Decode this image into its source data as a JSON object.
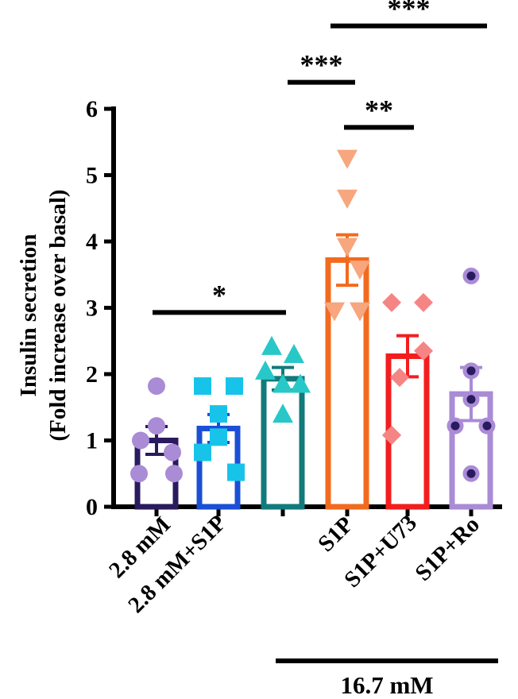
{
  "chart_data": {
    "type": "bar",
    "title": "",
    "xlabel": "",
    "ylabel": [
      "Insulin secretion",
      "(Fold increase over basal)"
    ],
    "ylim": [
      0,
      6
    ],
    "yticks": [
      "0",
      "1",
      "2",
      "3",
      "4",
      "5",
      "6"
    ],
    "categories": [
      "2.8 mM",
      "2.8 mM+S1P",
      "",
      "S1P",
      "S1P+U73",
      "S1P+Ro"
    ],
    "group_label": "16.7 mM",
    "bars": [
      {
        "category": "2.8 mM",
        "mean": 1.0,
        "sem": 0.21,
        "color": "#2a1a5e",
        "marker": "circle",
        "marker_color": "#a98bd6",
        "points": [
          1.82,
          1.22,
          1.0,
          0.82,
          0.5,
          0.5
        ]
      },
      {
        "category": "2.8 mM+S1P",
        "mean": 1.18,
        "sem": 0.21,
        "color": "#1a4fd6",
        "marker": "square",
        "marker_color": "#18c3ea",
        "points": [
          1.82,
          1.82,
          1.4,
          1.05,
          0.82,
          0.52
        ]
      },
      {
        "category": "",
        "mean": 1.93,
        "sem": 0.17,
        "color": "#127a7a",
        "marker": "triangle-up",
        "marker_color": "#28c8c8",
        "points": [
          2.42,
          2.3,
          2.05,
          1.85,
          1.85,
          1.4
        ]
      },
      {
        "category": "S1P",
        "mean": 3.72,
        "sem": 0.38,
        "color": "#f26a1e",
        "marker": "triangle-down",
        "marker_color": "#f7a67e",
        "points": [
          5.25,
          4.65,
          3.92,
          3.58,
          2.95,
          2.95
        ]
      },
      {
        "category": "S1P+U73",
        "mean": 2.27,
        "sem": 0.31,
        "color": "#f21e1e",
        "marker": "diamond",
        "marker_color": "#f58585",
        "points": [
          3.08,
          3.08,
          2.35,
          1.95,
          1.08,
          1.08
        ]
      },
      {
        "category": "S1P+Ro",
        "mean": 1.7,
        "sem": 0.4,
        "color": "#a98bd6",
        "marker": "circle",
        "marker_color": "#2a1a5e",
        "points": [
          3.48,
          2.05,
          1.62,
          1.22,
          1.22,
          0.5
        ]
      }
    ],
    "significance": [
      {
        "from": 0,
        "to": 2,
        "y": 2.93,
        "label": "*"
      },
      {
        "from": 2,
        "to": 3,
        "y": 6.4,
        "label": "***"
      },
      {
        "from": 3,
        "to": 4,
        "y": 5.72,
        "label": "**"
      },
      {
        "from": 3,
        "to": 5,
        "y": 7.25,
        "label": "***"
      }
    ]
  }
}
